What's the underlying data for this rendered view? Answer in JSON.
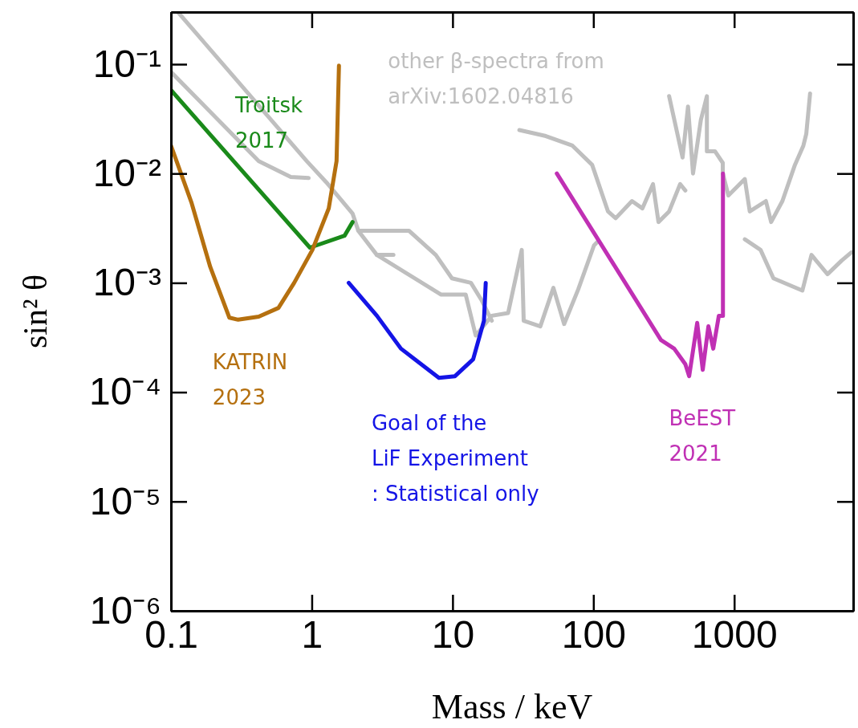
{
  "chart_data": {
    "type": "line",
    "xlabel": "Mass / keV",
    "ylabel": "sin² θ",
    "log": "xy",
    "grid": false,
    "line_style": "solid",
    "xlim": [
      0.1,
      7000
    ],
    "ylim": [
      1e-06,
      0.3
    ],
    "xticks": [
      0.1,
      1,
      10,
      100,
      1000
    ],
    "yticks": [
      {
        "value": 1e-06,
        "label": "10⁻⁶"
      },
      {
        "value": 1e-05,
        "label": "10⁻⁵"
      },
      {
        "value": 0.0001,
        "label": "10⁻⁴"
      },
      {
        "value": 0.001,
        "label": "10⁻³"
      },
      {
        "value": 0.01,
        "label": "10⁻²"
      },
      {
        "value": 0.1,
        "label": "10⁻¹"
      }
    ],
    "series": [
      {
        "name": "other β-spectra from\narXiv:1602.04816",
        "color": "#bfbfbf",
        "x": [
          0.112,
          0.92,
          1.27,
          1.95,
          2.14,
          4.9,
          7.6,
          9.9,
          13.5,
          16,
          19
        ],
        "values": [
          0.3,
          0.013,
          0.0083,
          0.0043,
          0.003,
          0.003,
          0.0018,
          0.0011,
          0.001,
          0.0007,
          0.00045
        ]
      },
      {
        "color": "#bfbfbf",
        "x": [
          2.14,
          2.9,
          8.3,
          12.4,
          14.6,
          19,
          24.8,
          31,
          32,
          42,
          52,
          62,
          78,
          101,
          108
        ],
        "values": [
          0.003,
          0.0018,
          0.00078,
          0.00078,
          0.00033,
          0.0005,
          0.00053,
          0.002,
          0.00045,
          0.0004,
          0.0009,
          0.00042,
          0.00087,
          0.0022,
          0.0024
        ]
      },
      {
        "color": "#bfbfbf",
        "x": [
          2.9,
          3.8
        ],
        "values": [
          0.0018,
          0.0018
        ]
      },
      {
        "color": "#bfbfbf",
        "x": [
          0.1,
          0.42,
          0.71,
          0.95
        ],
        "values": [
          0.085,
          0.013,
          0.0093,
          0.0091
        ]
      },
      {
        "color": "#bfbfbf",
        "x": [
          29.8,
          46,
          71,
          98,
          127,
          144,
          188,
          223,
          265,
          290,
          345,
          413,
          450
        ],
        "values": [
          0.025,
          0.022,
          0.018,
          0.012,
          0.0045,
          0.0039,
          0.0056,
          0.0048,
          0.008,
          0.0036,
          0.0045,
          0.008,
          0.007
        ]
      },
      {
        "color": "#bfbfbf",
        "x": [
          345,
          430,
          470,
          510,
          580,
          640,
          640,
          730,
          830,
          830,
          910,
          1190,
          1290,
          1680,
          1830,
          2200,
          2700,
          3100,
          3250,
          3460
        ],
        "values": [
          0.051,
          0.014,
          0.041,
          0.01,
          0.031,
          0.051,
          0.016,
          0.016,
          0.0125,
          0.01,
          0.0063,
          0.0089,
          0.0045,
          0.0056,
          0.0036,
          0.0056,
          0.012,
          0.018,
          0.023,
          0.054
        ]
      },
      {
        "color": "#bfbfbf",
        "x": [
          1190,
          1540,
          1900,
          3050,
          3540,
          4600,
          5800,
          6800
        ],
        "values": [
          0.0025,
          0.002,
          0.0011,
          0.00085,
          0.0018,
          0.0012,
          0.0016,
          0.0019
        ]
      },
      {
        "name": "Troitsk\n2017",
        "color": "#1a8a1a",
        "x": [
          0.1,
          0.97,
          1.71,
          1.95
        ],
        "values": [
          0.058,
          0.0021,
          0.0027,
          0.0036
        ]
      },
      {
        "name": "KATRIN\n2023",
        "color": "#b5700f",
        "x": [
          0.1,
          0.14,
          0.19,
          0.26,
          0.3,
          0.42,
          0.58,
          0.75,
          1.01,
          1.32,
          1.5,
          1.56
        ],
        "values": [
          0.018,
          0.0054,
          0.0014,
          0.00048,
          0.00046,
          0.00049,
          0.00059,
          0.001,
          0.002,
          0.0048,
          0.013,
          0.097
        ]
      },
      {
        "name": "Goal of the\nLiF Experiment\n: Statistical only",
        "color": "#1414e6",
        "x": [
          1.83,
          2.9,
          4.3,
          8,
          10.4,
          14,
          16.7,
          17.2
        ],
        "values": [
          0.001,
          0.0005,
          0.00025,
          0.000135,
          0.00014,
          0.0002,
          0.00045,
          0.001
        ]
      },
      {
        "name": "BeEST\n2021",
        "color": "#c030b4",
        "x": [
          55,
          302,
          375,
          450,
          479,
          546,
          598,
          656,
          710,
          778,
          832,
          832
        ],
        "values": [
          0.01,
          0.0003,
          0.00025,
          0.00018,
          0.00014,
          0.00043,
          0.00016,
          0.0004,
          0.00025,
          0.0005,
          0.0005,
          0.01
        ]
      }
    ]
  }
}
